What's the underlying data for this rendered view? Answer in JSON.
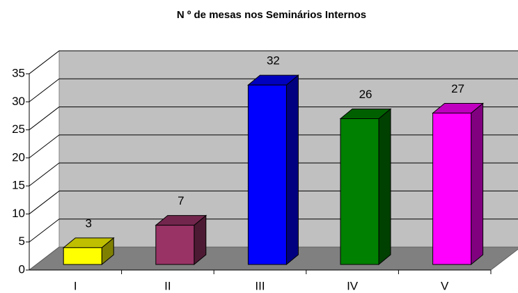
{
  "chart_data": {
    "type": "bar3d",
    "title": "N º de mesas nos Seminários Internos",
    "categories": [
      "I",
      "II",
      "III",
      "IV",
      "V"
    ],
    "values": [
      3,
      7,
      32,
      26,
      27
    ],
    "colors": [
      "#ffff00",
      "#993366",
      "#0000ff",
      "#008000",
      "#ff00ff"
    ],
    "ylim": [
      0,
      35
    ],
    "yticks": [
      0,
      5,
      10,
      15,
      20,
      25,
      30,
      35
    ],
    "grid": true
  }
}
